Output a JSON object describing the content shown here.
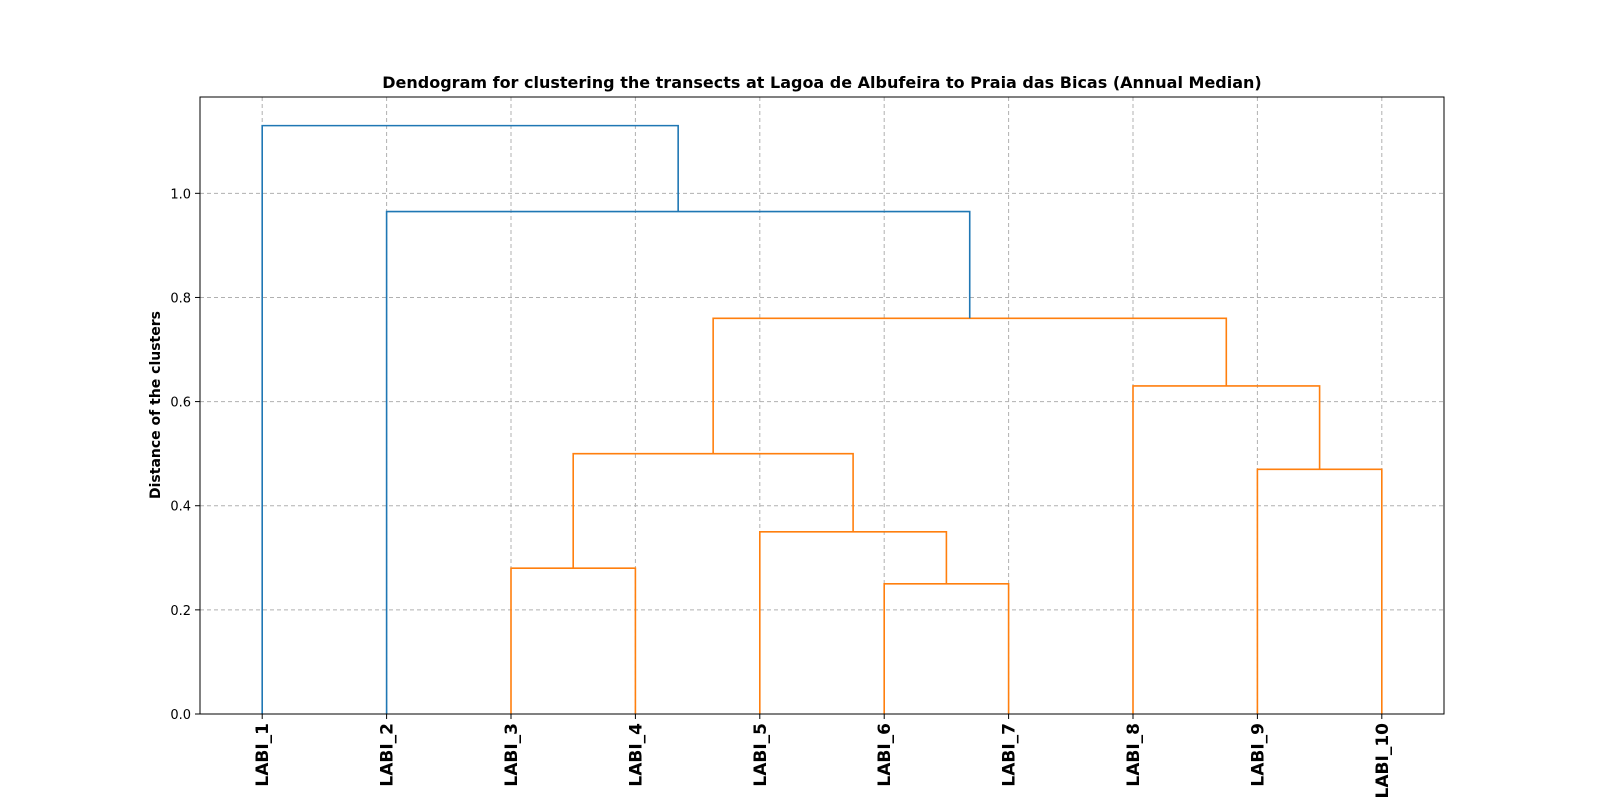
{
  "chart_data": {
    "type": "dendrogram",
    "title": "Dendogram for clustering the transects at Lagoa de Albufeira to Praia das Bicas (Annual Median)",
    "xlabel": "",
    "ylabel": "Distance of the clusters",
    "ylim": [
      0,
      1.185
    ],
    "yticks": [
      "0.0",
      "0.2",
      "0.4",
      "0.6",
      "0.8",
      "1.0"
    ],
    "grid": true,
    "leaves": [
      "LABI_1",
      "LABI_2",
      "LABI_3",
      "LABI_4",
      "LABI_5",
      "LABI_6",
      "LABI_7",
      "LABI_8",
      "LABI_9",
      "LABI_10"
    ],
    "colors": {
      "above_threshold": "#1f77b4",
      "cluster": "#ff7f0e"
    },
    "merges": [
      {
        "left": "LABI_6",
        "right": "LABI_7",
        "height": 0.25,
        "color": "#ff7f0e"
      },
      {
        "left": "LABI_3",
        "right": "LABI_4",
        "height": 0.28,
        "color": "#ff7f0e"
      },
      {
        "left": "LABI_5",
        "right": "(LABI_6,LABI_7)",
        "height": 0.35,
        "color": "#ff7f0e"
      },
      {
        "left": "LABI_9",
        "right": "LABI_10",
        "height": 0.47,
        "color": "#ff7f0e"
      },
      {
        "left": "(LABI_3,LABI_4)",
        "right": "(LABI_5,LABI_6,LABI_7)",
        "height": 0.5,
        "color": "#ff7f0e"
      },
      {
        "left": "LABI_8",
        "right": "(LABI_9,LABI_10)",
        "height": 0.63,
        "color": "#ff7f0e"
      },
      {
        "left": "(LABI_3..LABI_7)",
        "right": "(LABI_8..LABI_10)",
        "height": 0.76,
        "color": "#ff7f0e"
      },
      {
        "left": "LABI_2",
        "right": "(LABI_3..LABI_10)",
        "height": 0.965,
        "color": "#1f77b4"
      },
      {
        "left": "LABI_1",
        "right": "(LABI_2..LABI_10)",
        "height": 1.13,
        "color": "#1f77b4"
      }
    ]
  }
}
